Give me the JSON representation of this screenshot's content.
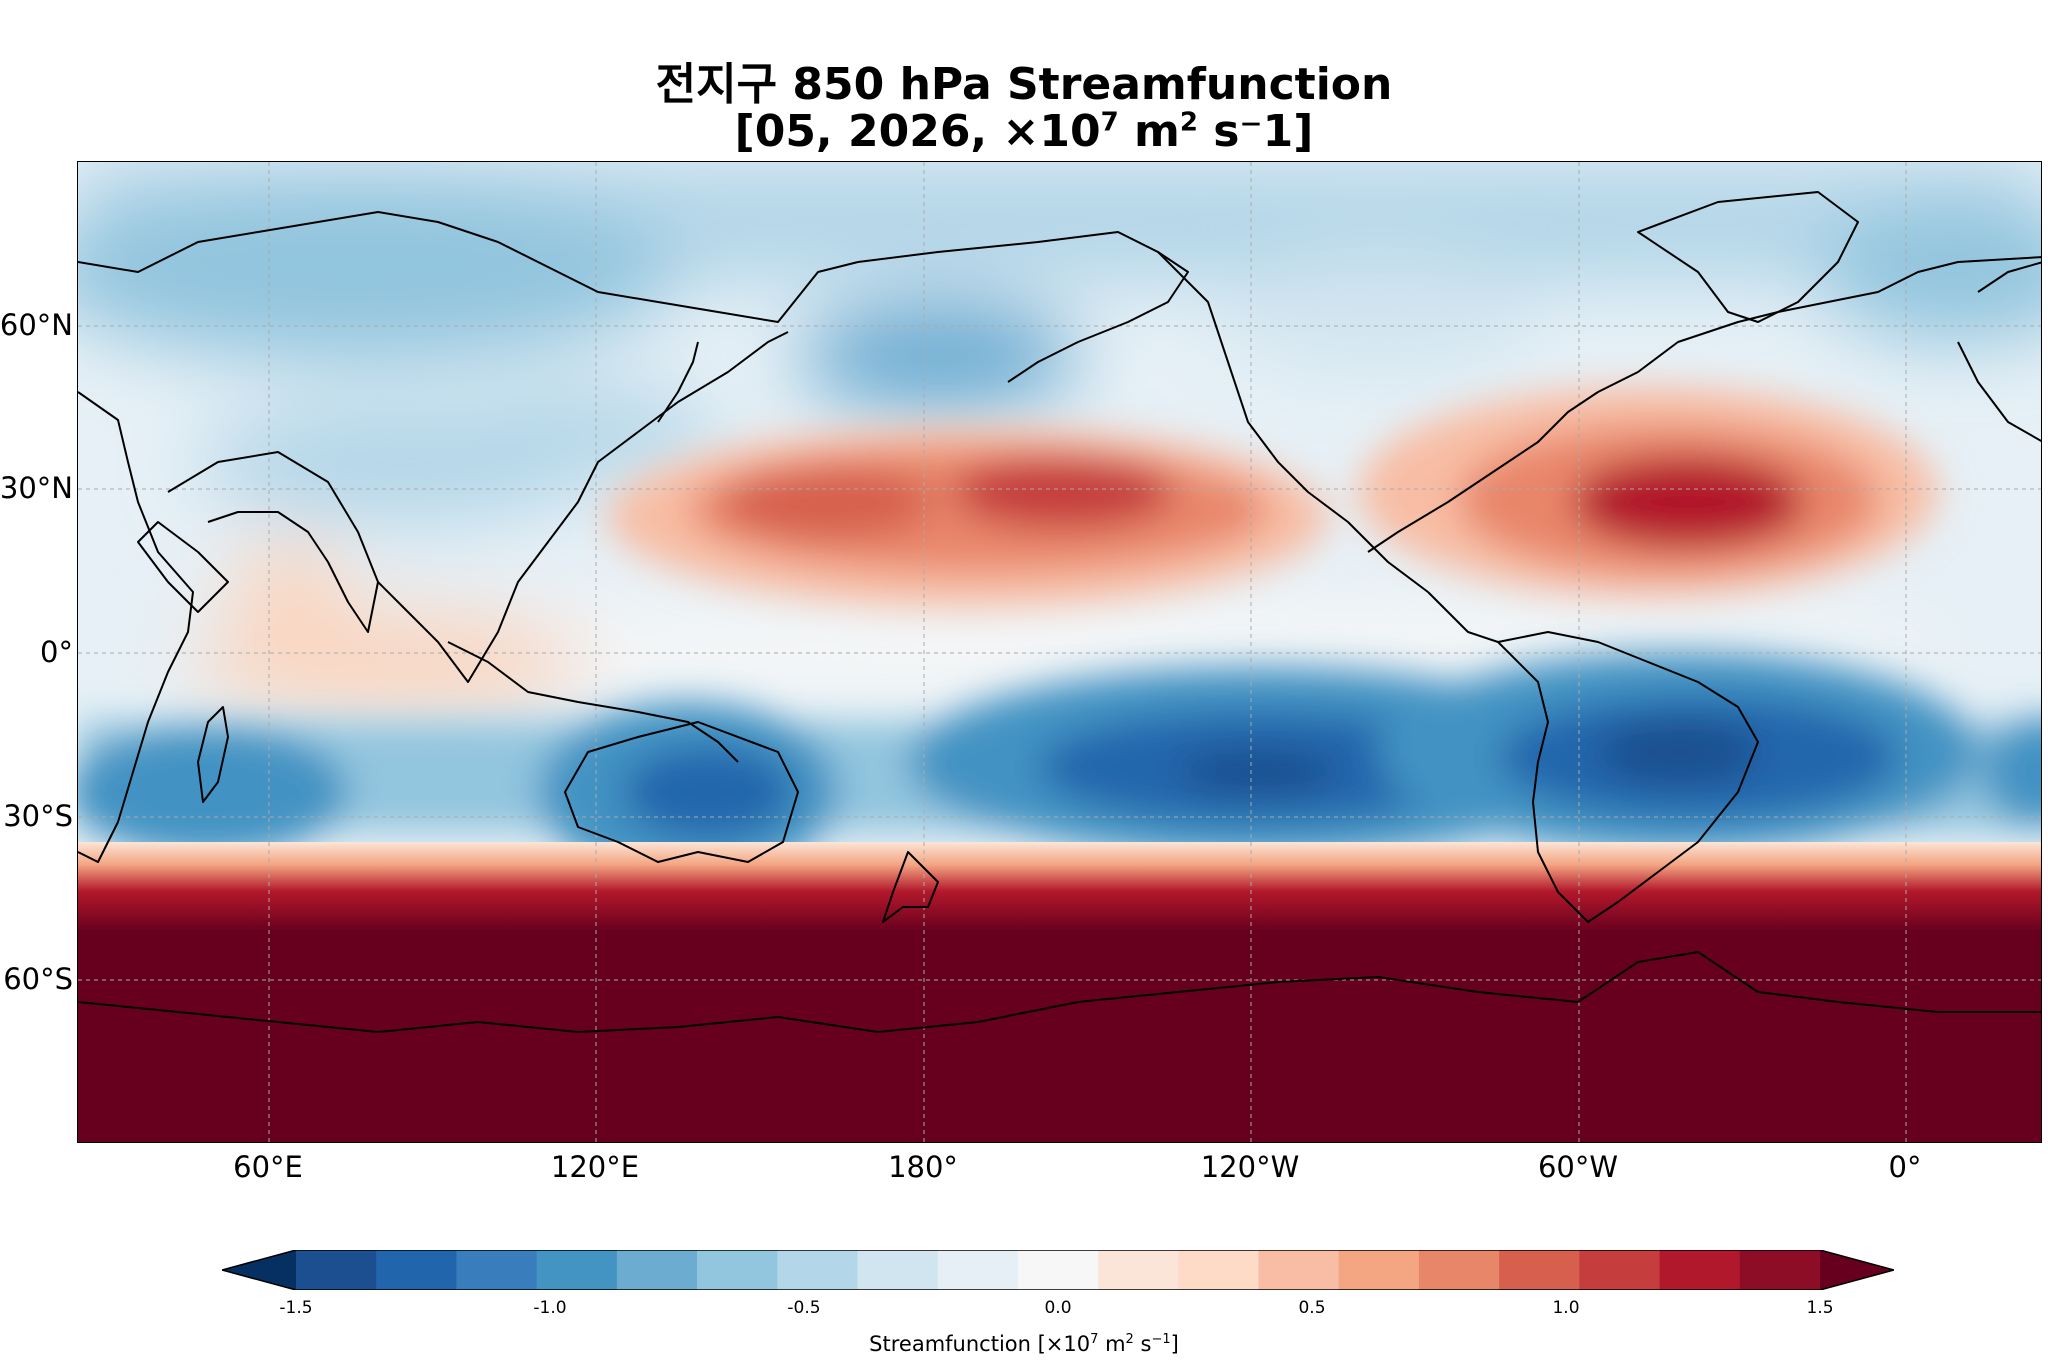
{
  "title": {
    "line1": "전지구 850 hPa Streamfunction",
    "line2_prefix": "[05, 2026, ×10",
    "line2_exp": "7",
    "line2_mid": " m",
    "line2_exp2": "2",
    "line2_suffix": " s⁻1]"
  },
  "map": {
    "projection": "PlateCarree",
    "central_longitude": 180,
    "extent_lon": [
      30,
      390
    ],
    "extent_lat": [
      -90,
      90
    ],
    "gridlines": true,
    "coastlines": true,
    "lat_ticks": [
      {
        "label": "60°N"
      },
      {
        "label": "30°N"
      },
      {
        "label": "0°"
      },
      {
        "label": "30°S"
      },
      {
        "label": "60°S"
      }
    ],
    "lon_ticks": [
      {
        "label": "60°E"
      },
      {
        "label": "120°E"
      },
      {
        "label": "180°"
      },
      {
        "label": "120°W"
      },
      {
        "label": "60°W"
      },
      {
        "label": "0°"
      }
    ]
  },
  "field_features": [
    {
      "name": "North Pacific high",
      "sign": "positive",
      "value": 1.0
    },
    {
      "name": "North Atlantic high",
      "sign": "positive",
      "value": 1.2
    },
    {
      "name": "South Pacific low",
      "sign": "negative",
      "value": -1.2
    },
    {
      "name": "South Atlantic/Brazil low",
      "sign": "negative",
      "value": -1.3
    },
    {
      "name": "Australia low",
      "sign": "negative",
      "value": -1.0
    },
    {
      "name": "Southern Ocean",
      "sign": "positive",
      "value": 1.6
    }
  ],
  "colorbar": {
    "cmap": "RdBu_r",
    "vmin": -1.5,
    "vmax": 1.5,
    "extend": "both",
    "ticks": [
      "-1.5",
      "-1.0",
      "-0.5",
      "0.0",
      "0.5",
      "1.0",
      "1.5"
    ],
    "colors": [
      "#053061",
      "#1b4f8f",
      "#2166ac",
      "#3a7dbd",
      "#4393c3",
      "#6dacd1",
      "#92c5de",
      "#b3d6e8",
      "#d1e5f0",
      "#e5eff5",
      "#f7f7f7",
      "#fbe5d8",
      "#fddbc7",
      "#f8bda4",
      "#f4a582",
      "#e8866a",
      "#d6604d",
      "#c53e3d",
      "#b2182b",
      "#8e0d26",
      "#67001f"
    ],
    "label_prefix": "Streamfunction [×10",
    "label_exp": "7",
    "label_mid": " m",
    "label_exp2": "2",
    "label_mid2": " s",
    "label_exp3": "−1",
    "label_suffix": "]"
  }
}
